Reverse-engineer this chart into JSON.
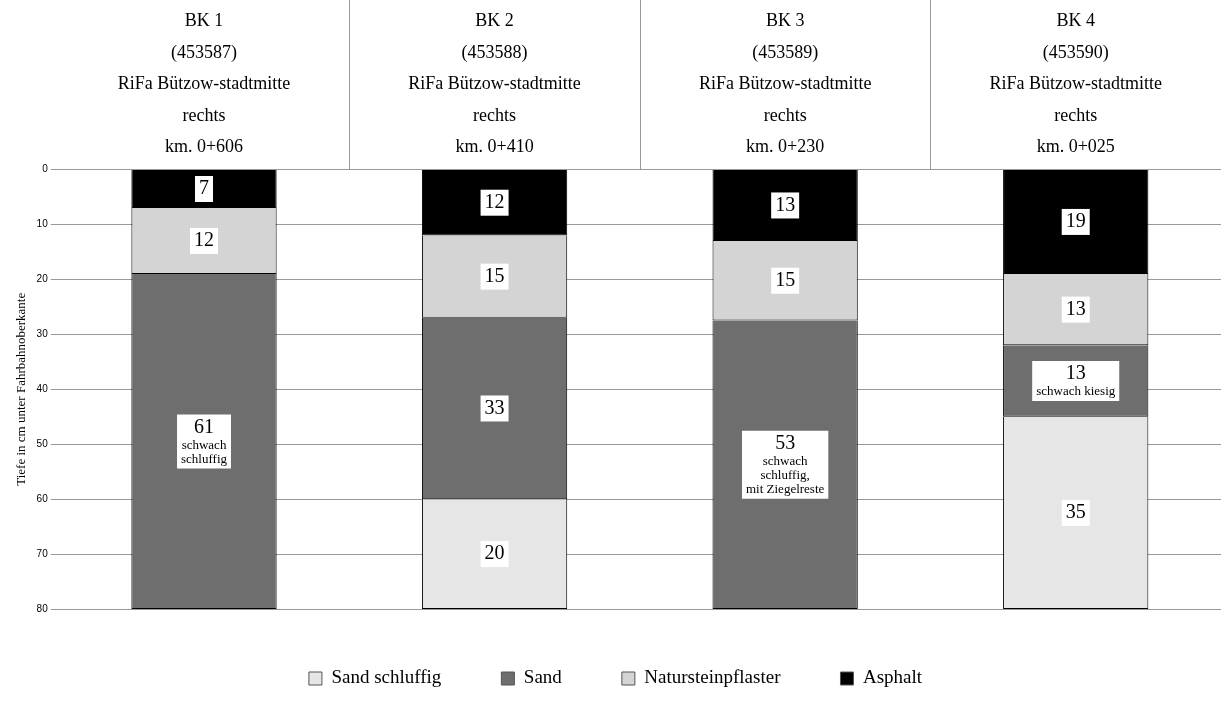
{
  "chart_data": {
    "type": "bar",
    "stacked": true,
    "ylabel": "Tiefe in cm unter Fahrbahnoberkante",
    "categories": [
      "BK 1\n(453587)\nRiFa Bützow-stadtmitte\nrechts\nkm. 0+606",
      "BK 2\n(453588)\nRiFa Bützow-stadtmitte\nrechts\nkm. 0+410",
      "BK 3\n(453589)\nRiFa Bützow-stadtmitte\nrechts\nkm. 0+230",
      "BK 4\n(453590)\nRiFa Bützow-stadtmitte\nrechts\nkm. 0+025"
    ],
    "series": [
      {
        "name": "Asphalt",
        "color": "#000000",
        "values": [
          7,
          12,
          13,
          19
        ],
        "value_labels": [
          "7",
          "12",
          "13",
          "19"
        ]
      },
      {
        "name": "Natursteinpflaster",
        "color": "#d4d4d4",
        "values": [
          12,
          15,
          14.5,
          13
        ],
        "value_labels": [
          "12",
          "15",
          "15",
          "13"
        ]
      },
      {
        "name": "Sand",
        "color": "#6e6e6e",
        "values": [
          61,
          33,
          52.5,
          13
        ],
        "value_labels": [
          "61\nschwach\nschluffig",
          "33",
          "53\nschwach\nschluffig,\nmit Ziegelreste",
          "13\nschwach kiesig"
        ]
      },
      {
        "name": "Sand schluffig",
        "color": "#e6e6e6",
        "values": [
          null,
          20,
          null,
          35
        ],
        "value_labels": [
          null,
          "20",
          null,
          "35"
        ]
      }
    ],
    "ylim": [
      80,
      0
    ],
    "yticks": [
      0,
      10,
      20,
      30,
      40,
      50,
      60,
      70,
      80
    ],
    "grid": "y",
    "legend": "bottom"
  }
}
